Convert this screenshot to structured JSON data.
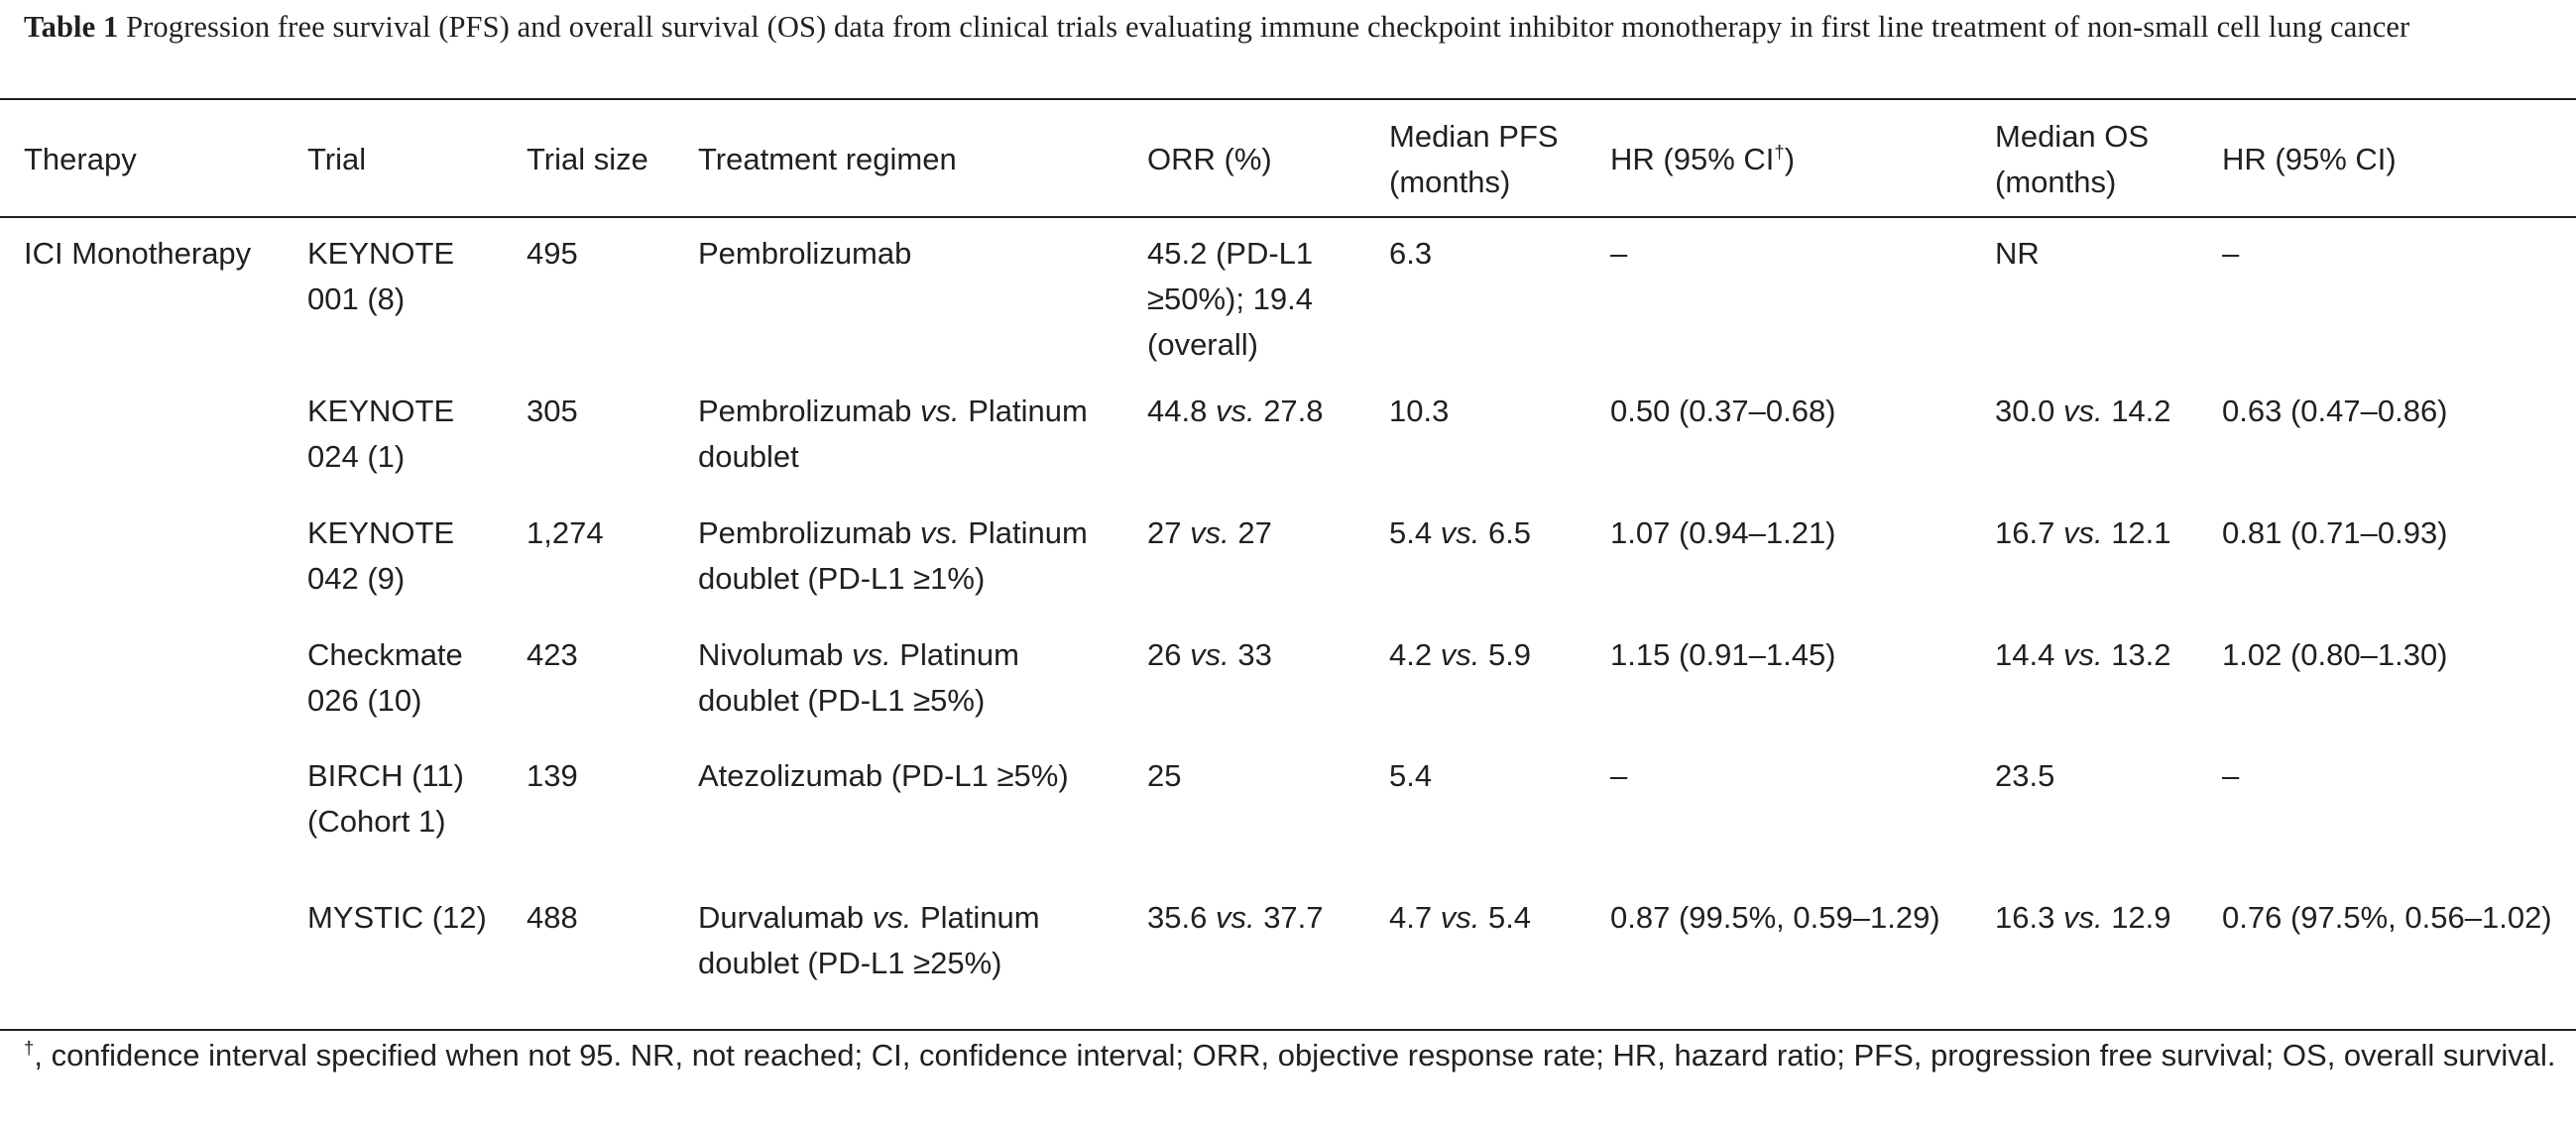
{
  "caption": {
    "label": "Table 1",
    "text": "Progression free survival (PFS) and overall survival (OS) data from clinical trials evaluating immune checkpoint inhibitor monotherapy in first line treatment of non-small cell lung cancer"
  },
  "header": {
    "therapy": "Therapy",
    "trial": "Trial",
    "trial_size": "Trial size",
    "regimen": "Treatment regimen",
    "orr": "ORR (%)",
    "pfs_line1": "Median PFS",
    "pfs_line2": "(months)",
    "hr_pfs": "HR (95% CI",
    "hr_pfs_sup": "†",
    "hr_pfs_close": ")",
    "os_line1": "Median OS",
    "os_line2": "(months)",
    "hr_os": "HR (95% CI)"
  },
  "rows": [
    {
      "therapy": "ICI Monotherapy",
      "trial": [
        "KEYNOTE",
        "001 (8)"
      ],
      "size": "495",
      "regimen": [
        "Pembrolizumab"
      ],
      "orr": [
        "45.2 (PD-L1",
        "≥50%); 19.4",
        "(overall)"
      ],
      "pfs": "6.3",
      "hr_pfs": "–",
      "os": "NR",
      "hr_os": "–"
    },
    {
      "therapy": "",
      "trial": [
        "KEYNOTE",
        "024 (1)"
      ],
      "size": "305",
      "regimen": [
        "Pembrolizumab vs. Platinum",
        "doublet"
      ],
      "orr": [
        "44.8 vs. 27.8"
      ],
      "pfs": "10.3",
      "hr_pfs": "0.50 (0.37–0.68)",
      "os": "30.0 vs. 14.2",
      "hr_os": "0.63 (0.47–0.86)"
    },
    {
      "therapy": "",
      "trial": [
        "KEYNOTE",
        "042 (9)"
      ],
      "size": "1,274",
      "regimen": [
        "Pembrolizumab vs. Platinum",
        "doublet (PD-L1 ≥1%)"
      ],
      "orr": [
        "27 vs. 27"
      ],
      "pfs": "5.4 vs. 6.5",
      "hr_pfs": "1.07 (0.94–1.21)",
      "os": "16.7 vs. 12.1",
      "hr_os": "0.81 (0.71–0.93)"
    },
    {
      "therapy": "",
      "trial": [
        "Checkmate",
        "026 (10)"
      ],
      "size": "423",
      "regimen": [
        "Nivolumab vs. Platinum",
        "doublet (PD-L1 ≥5%)"
      ],
      "orr": [
        "26 vs. 33"
      ],
      "pfs": "4.2 vs. 5.9",
      "hr_pfs": "1.15 (0.91–1.45)",
      "os": "14.4 vs. 13.2",
      "hr_os": "1.02 (0.80–1.30)"
    },
    {
      "therapy": "",
      "trial": [
        "BIRCH (11)",
        "(Cohort 1)"
      ],
      "size": "139",
      "regimen": [
        "Atezolizumab (PD-L1 ≥5%)"
      ],
      "orr": [
        "25"
      ],
      "pfs": "5.4",
      "hr_pfs": "–",
      "os": "23.5",
      "hr_os": "–"
    },
    {
      "therapy": "",
      "trial": [
        "MYSTIC (12)"
      ],
      "size": "488",
      "regimen": [
        "Durvalumab vs. Platinum",
        "doublet (PD-L1 ≥25%)"
      ],
      "orr": [
        "35.6 vs. 37.7"
      ],
      "pfs": "4.7 vs. 5.4",
      "hr_pfs": "0.87 (99.5%, 0.59–1.29)",
      "os": "16.3 vs. 12.9",
      "hr_os": "0.76 (97.5%, 0.56–1.02)"
    }
  ],
  "footnote": {
    "mark": "†",
    "text": ", confidence interval specified when not 95. NR, not reached; CI, confidence interval; ORR, objective response rate; HR, hazard ratio; PFS, progression free survival; OS, overall survival."
  }
}
